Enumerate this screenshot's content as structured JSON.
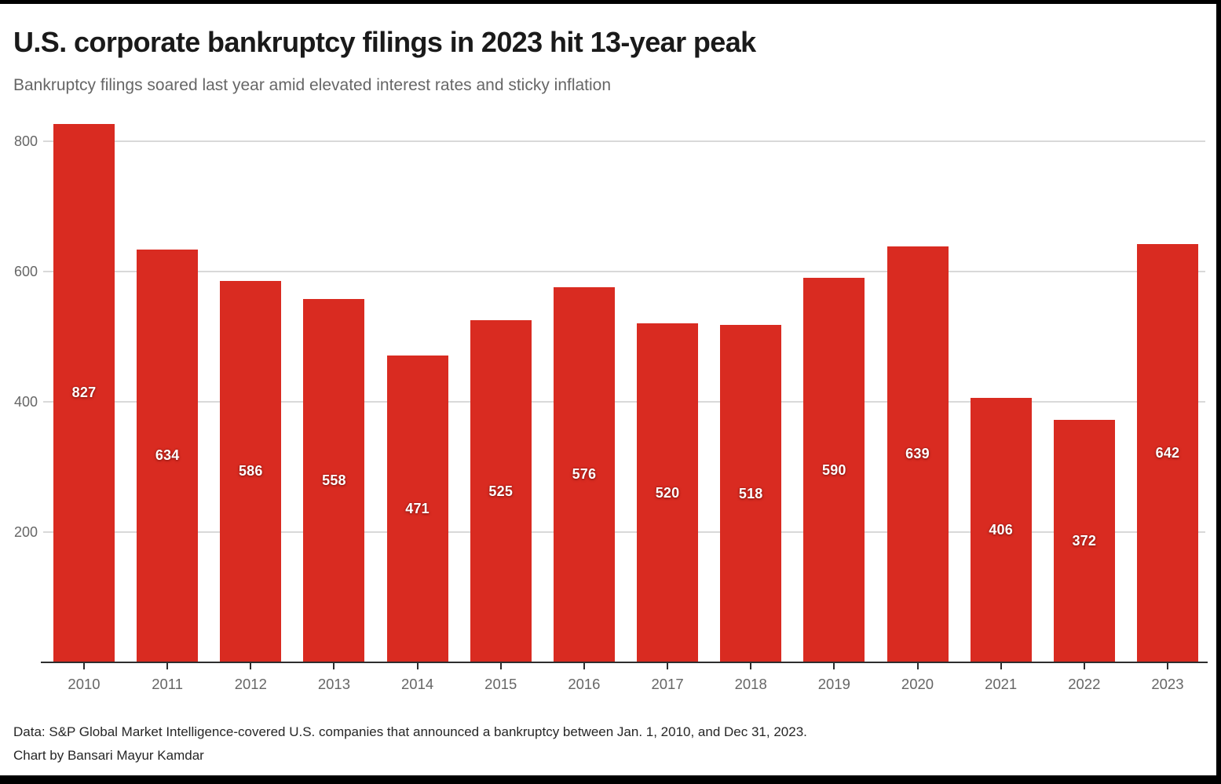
{
  "title": "U.S. corporate bankruptcy filings in 2023 hit 13-year peak",
  "subtitle": "Bankruptcy filings soared last year amid elevated interest rates and sticky inflation",
  "footer": {
    "source": "Data: S&P Global Market Intelligence-covered U.S. companies that announced a bankruptcy between Jan. 1, 2010, and Dec 31, 2023.",
    "credit": "Chart by Bansari Mayur Kamdar"
  },
  "colors": {
    "bar": "#d92b21",
    "gridline": "#d9d9d9",
    "axis": "#2e2e2e",
    "tick_label": "#666666",
    "title_text": "#1a1a1a",
    "subtitle_text": "#666666",
    "footer_text": "#262626",
    "value_label": "#ffffff",
    "frame": "#000000",
    "background": "#ffffff"
  },
  "chart_data": {
    "type": "bar",
    "title": "U.S. corporate bankruptcy filings in 2023 hit 13-year peak",
    "subtitle": "Bankruptcy filings soared last year amid elevated interest rates and sticky inflation",
    "categories": [
      "2010",
      "2011",
      "2012",
      "2013",
      "2014",
      "2015",
      "2016",
      "2017",
      "2018",
      "2019",
      "2020",
      "2021",
      "2022",
      "2023"
    ],
    "values": [
      827,
      634,
      586,
      558,
      471,
      525,
      576,
      520,
      518,
      590,
      639,
      406,
      372,
      642
    ],
    "xlabel": "",
    "ylabel": "",
    "ylim": [
      0,
      830
    ],
    "yticks": [
      200,
      400,
      600,
      800
    ],
    "grid": "horizontal",
    "legend": "none",
    "bar_value_labels": "white, bold, centered inside bars"
  }
}
